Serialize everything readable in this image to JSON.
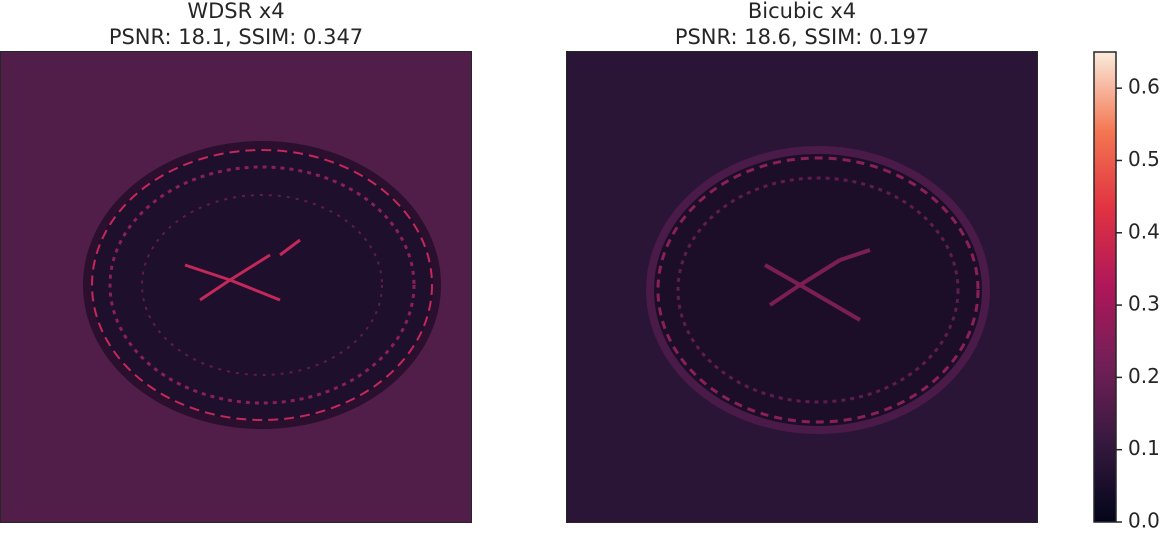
{
  "chart_data": {
    "type": "heatmap",
    "panels": [
      {
        "title": "WDSR x4",
        "subtitle": "PSNR: 18.1, SSIM: 0.347"
      },
      {
        "title": "Bicubic x4",
        "subtitle": "PSNR: 18.6, SSIM: 0.197"
      }
    ],
    "colorbar": {
      "lim": [
        0,
        0.65
      ],
      "ticks": [
        {
          "value": 0,
          "label": "0.0"
        },
        0.1,
        0.2,
        0.3,
        0.4,
        0.5,
        0.6
      ]
    }
  }
}
